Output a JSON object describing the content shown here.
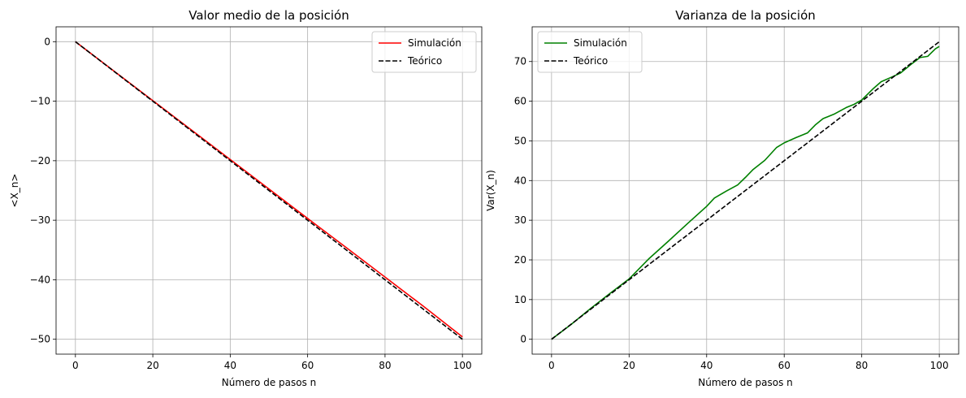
{
  "chart_data": [
    {
      "type": "line",
      "title": "Valor medio de la posición",
      "xlabel": "Número de pasos n",
      "ylabel": "<X_n>",
      "xlim": [
        -5,
        105
      ],
      "ylim": [
        -52.5,
        2.5
      ],
      "xticks": [
        0,
        20,
        40,
        60,
        80,
        100
      ],
      "yticks": [
        0,
        -10,
        -20,
        -30,
        -40,
        -50
      ],
      "grid": true,
      "legend_position": "top-right",
      "series": [
        {
          "name": "Simulación",
          "color": "#ff0000",
          "style": "solid",
          "x": [
            0,
            10,
            20,
            30,
            40,
            50,
            60,
            70,
            80,
            90,
            100
          ],
          "y": [
            0,
            -4.95,
            -9.9,
            -14.85,
            -19.8,
            -24.75,
            -29.7,
            -34.6,
            -39.55,
            -44.5,
            -49.6
          ]
        },
        {
          "name": "Teórico",
          "color": "#000000",
          "style": "dashed",
          "x": [
            0,
            100
          ],
          "y": [
            0,
            -50
          ]
        }
      ]
    },
    {
      "type": "line",
      "title": "Varianza de la posición",
      "xlabel": "Número de pasos n",
      "ylabel": "Var(X_n)",
      "xlim": [
        -5,
        105
      ],
      "ylim": [
        -3.75,
        78.75
      ],
      "xticks": [
        0,
        20,
        40,
        60,
        80,
        100
      ],
      "yticks": [
        0,
        10,
        20,
        30,
        40,
        50,
        60,
        70
      ],
      "grid": true,
      "legend_position": "top-left",
      "series": [
        {
          "name": "Simulación",
          "color": "#008000",
          "style": "solid",
          "x": [
            0,
            5,
            10,
            15,
            20,
            25,
            30,
            35,
            40,
            42,
            45,
            48,
            50,
            52,
            55,
            58,
            60,
            63,
            66,
            68,
            70,
            73,
            76,
            78,
            80,
            83,
            85,
            88,
            90,
            93,
            95,
            97,
            99,
            100
          ],
          "y": [
            0,
            3.7,
            7.7,
            11.5,
            15.2,
            20.2,
            24.6,
            29.1,
            33.5,
            35.6,
            37.3,
            38.9,
            40.8,
            42.8,
            45.1,
            48.3,
            49.5,
            50.8,
            52.0,
            54.0,
            55.6,
            56.8,
            58.4,
            59.2,
            60.3,
            63.2,
            64.9,
            66.2,
            67.1,
            69.5,
            71.0,
            71.3,
            73.2,
            73.8
          ]
        },
        {
          "name": "Teórico",
          "color": "#000000",
          "style": "dashed",
          "x": [
            0,
            100
          ],
          "y": [
            0,
            75
          ]
        }
      ]
    }
  ]
}
